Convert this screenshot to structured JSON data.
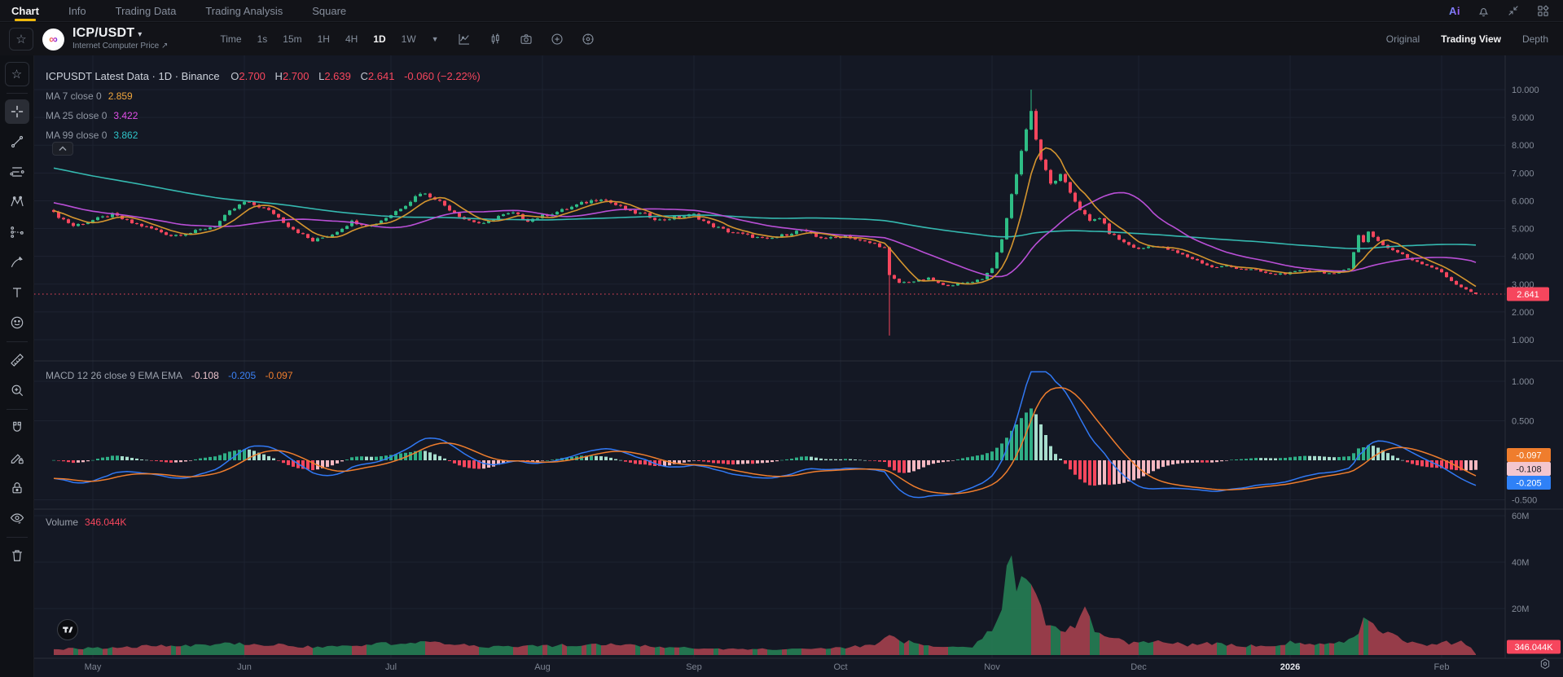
{
  "top_nav": {
    "tabs": [
      {
        "label": "Chart",
        "active": true
      },
      {
        "label": "Info",
        "active": false
      },
      {
        "label": "Trading Data",
        "active": false
      },
      {
        "label": "Trading Analysis",
        "active": false
      },
      {
        "label": "Square",
        "active": false
      }
    ],
    "ai_label": "Ai",
    "accent_color": "#f0b90b"
  },
  "toolbar": {
    "symbol": "ICP/USDT",
    "symbol_description": "Internet Computer Price",
    "coin_glyph": "∞",
    "intervals": [
      "Time",
      "1s",
      "15m",
      "1H",
      "4H",
      "1D",
      "1W"
    ],
    "active_interval": "1D",
    "view_tabs": [
      {
        "label": "Original",
        "active": false
      },
      {
        "label": "Trading View",
        "active": true
      },
      {
        "label": "Depth",
        "active": false
      }
    ]
  },
  "legend": {
    "title": "ICPUSDT Latest Data · 1D · Binance",
    "o_label": "O",
    "o": "2.700",
    "h_label": "H",
    "h": "2.700",
    "l_label": "L",
    "l": "2.639",
    "c_label": "C",
    "c": "2.641",
    "change": "-0.060 (−2.22%)",
    "ma": [
      {
        "label": "MA 7 close 0",
        "value": "2.859",
        "color": "#f0a63c"
      },
      {
        "label": "MA 25 close 0",
        "value": "3.422",
        "color": "#e14fe8"
      },
      {
        "label": "MA 99 close 0",
        "value": "3.862",
        "color": "#2fc4c9"
      }
    ]
  },
  "macd_legend": {
    "title": "MACD 12 26 close 9 EMA EMA",
    "histogram": "-0.108",
    "histogram_color": "#edc4cd",
    "macd": "-0.205",
    "macd_color": "#3b82f6",
    "signal": "-0.097",
    "signal_color": "#ef7d2d"
  },
  "volume_legend": {
    "label": "Volume",
    "value": "346.044K"
  },
  "axis": {
    "price_ticks": [
      {
        "label": "10.000",
        "value": 10
      },
      {
        "label": "9.000",
        "value": 9
      },
      {
        "label": "8.000",
        "value": 8
      },
      {
        "label": "7.000",
        "value": 7
      },
      {
        "label": "6.000",
        "value": 6
      },
      {
        "label": "5.000",
        "value": 5
      },
      {
        "label": "4.000",
        "value": 4
      },
      {
        "label": "3.000",
        "value": 3
      },
      {
        "label": "2.000",
        "value": 2
      },
      {
        "label": "1.000",
        "value": 1
      }
    ],
    "macd_ticks": [
      {
        "label": "1.000",
        "value": 1.0
      },
      {
        "label": "0.500",
        "value": 0.5
      },
      {
        "label": "-0.500",
        "value": -0.5
      }
    ],
    "volume_ticks": [
      {
        "label": "60M",
        "value": 60
      },
      {
        "label": "40M",
        "value": 40
      },
      {
        "label": "20M",
        "value": 20
      }
    ],
    "months": [
      {
        "label": "May",
        "day": 8
      },
      {
        "label": "Jun",
        "day": 39
      },
      {
        "label": "Jul",
        "day": 69
      },
      {
        "label": "Aug",
        "day": 100
      },
      {
        "label": "Sep",
        "day": 131
      },
      {
        "label": "Oct",
        "day": 161
      },
      {
        "label": "Nov",
        "day": 192
      },
      {
        "label": "Dec",
        "day": 222
      },
      {
        "label": "2026",
        "day": 253,
        "highlight": true
      },
      {
        "label": "Feb",
        "day": 284
      }
    ],
    "badges": {
      "price": {
        "label": "2.641",
        "bg": "#f6465d",
        "fg": "#ffffff"
      },
      "signal": {
        "label": "-0.097",
        "bg": "#ef7d2d",
        "fg": "#ffffff"
      },
      "hist": {
        "label": "-0.108",
        "bg": "#f3c6ce",
        "fg": "#1b1d23"
      },
      "macd": {
        "label": "-0.205",
        "bg": "#2f81f7",
        "fg": "#ffffff"
      },
      "volume": {
        "label": "346.044K",
        "bg": "#f6465d",
        "fg": "#ffffff"
      }
    }
  },
  "chart_data": {
    "type": "candlestick",
    "symbol": "ICPUSDT",
    "interval": "1D",
    "exchange": "Binance",
    "panes": [
      "price+MA(7,25,99)",
      "MACD(12,26,9)",
      "volume"
    ],
    "ohlc_last": {
      "open": 2.7,
      "high": 2.7,
      "low": 2.639,
      "close": 2.641,
      "change": -0.06,
      "change_pct": "-2.22%"
    },
    "ma_values": {
      "ma7": 2.859,
      "ma25": 3.422,
      "ma99": 3.862
    },
    "macd_values": {
      "histogram": -0.108,
      "macd": -0.205,
      "signal": -0.097
    },
    "volume_last_label": "346.044K",
    "price_axis_range": [
      0.6,
      10.4
    ],
    "macd_axis_range": [
      -0.55,
      1.15
    ],
    "volume_axis_range_m": [
      0,
      60
    ],
    "days_total": 292,
    "history": {
      "start_price": 8.9,
      "days": 100
    },
    "close_anchors": [
      [
        0,
        5.55
      ],
      [
        4,
        5.1
      ],
      [
        8,
        5.3
      ],
      [
        12,
        5.5
      ],
      [
        16,
        5.2
      ],
      [
        20,
        5.0
      ],
      [
        24,
        4.75
      ],
      [
        28,
        4.85
      ],
      [
        33,
        5.1
      ],
      [
        36,
        5.6
      ],
      [
        39,
        5.95
      ],
      [
        42,
        5.8
      ],
      [
        45,
        5.55
      ],
      [
        48,
        5.1
      ],
      [
        53,
        4.55
      ],
      [
        57,
        4.8
      ],
      [
        61,
        5.25
      ],
      [
        65,
        5.1
      ],
      [
        69,
        5.5
      ],
      [
        73,
        6.0
      ],
      [
        75,
        6.3
      ],
      [
        78,
        6.1
      ],
      [
        81,
        5.7
      ],
      [
        84,
        5.35
      ],
      [
        88,
        5.15
      ],
      [
        91,
        5.45
      ],
      [
        94,
        5.55
      ],
      [
        97,
        5.3
      ],
      [
        100,
        5.45
      ],
      [
        104,
        5.65
      ],
      [
        108,
        5.9
      ],
      [
        112,
        6.1
      ],
      [
        115,
        5.85
      ],
      [
        118,
        5.6
      ],
      [
        121,
        5.5
      ],
      [
        124,
        5.3
      ],
      [
        127,
        5.4
      ],
      [
        131,
        5.5
      ],
      [
        134,
        5.15
      ],
      [
        138,
        4.9
      ],
      [
        142,
        4.75
      ],
      [
        146,
        4.6
      ],
      [
        150,
        4.8
      ],
      [
        153,
        4.95
      ],
      [
        156,
        4.7
      ],
      [
        159,
        4.65
      ],
      [
        162,
        4.75
      ],
      [
        165,
        4.55
      ],
      [
        168,
        4.45
      ],
      [
        170,
        4.3
      ],
      [
        171,
        3.3
      ],
      [
        173,
        3.05
      ],
      [
        176,
        3.1
      ],
      [
        179,
        3.2
      ],
      [
        182,
        2.95
      ],
      [
        185,
        3.0
      ],
      [
        188,
        3.1
      ],
      [
        190,
        3.2
      ],
      [
        192,
        3.6
      ],
      [
        194,
        4.6
      ],
      [
        196,
        6.2
      ],
      [
        198,
        7.8
      ],
      [
        200,
        9.3
      ],
      [
        201,
        8.2
      ],
      [
        202,
        7.5
      ],
      [
        204,
        6.6
      ],
      [
        206,
        6.9
      ],
      [
        208,
        6.3
      ],
      [
        210,
        5.7
      ],
      [
        212,
        5.25
      ],
      [
        214,
        5.4
      ],
      [
        216,
        4.85
      ],
      [
        219,
        4.5
      ],
      [
        222,
        4.25
      ],
      [
        225,
        4.4
      ],
      [
        228,
        4.25
      ],
      [
        231,
        4.05
      ],
      [
        234,
        3.85
      ],
      [
        237,
        3.6
      ],
      [
        240,
        3.65
      ],
      [
        243,
        3.55
      ],
      [
        246,
        3.5
      ],
      [
        249,
        3.35
      ],
      [
        253,
        3.4
      ],
      [
        256,
        3.5
      ],
      [
        259,
        3.45
      ],
      [
        262,
        3.35
      ],
      [
        265,
        3.6
      ],
      [
        267,
        4.75
      ],
      [
        268,
        4.5
      ],
      [
        269,
        4.9
      ],
      [
        271,
        4.55
      ],
      [
        273,
        4.3
      ],
      [
        275,
        4.15
      ],
      [
        277,
        3.95
      ],
      [
        280,
        3.75
      ],
      [
        283,
        3.55
      ],
      [
        285,
        3.25
      ],
      [
        287,
        3.0
      ],
      [
        289,
        2.8
      ],
      [
        291,
        2.641
      ]
    ],
    "events": [
      {
        "day": 171,
        "low": 1.15
      },
      {
        "day": 200,
        "high": 10.0
      }
    ],
    "volume_anchors_m": [
      [
        0,
        3
      ],
      [
        20,
        4.5
      ],
      [
        39,
        6
      ],
      [
        53,
        4
      ],
      [
        75,
        6.5
      ],
      [
        90,
        4
      ],
      [
        112,
        5.5
      ],
      [
        130,
        3.5
      ],
      [
        145,
        3
      ],
      [
        160,
        3.5
      ],
      [
        168,
        5
      ],
      [
        171,
        12
      ],
      [
        174,
        7
      ],
      [
        178,
        5
      ],
      [
        183,
        4
      ],
      [
        188,
        4
      ],
      [
        192,
        14
      ],
      [
        194,
        20
      ],
      [
        196,
        58
      ],
      [
        197,
        30
      ],
      [
        199,
        40
      ],
      [
        201,
        35
      ],
      [
        203,
        18
      ],
      [
        205,
        14
      ],
      [
        207,
        11
      ],
      [
        209,
        16
      ],
      [
        211,
        23
      ],
      [
        213,
        12
      ],
      [
        216,
        9
      ],
      [
        220,
        6
      ],
      [
        226,
        7
      ],
      [
        232,
        5
      ],
      [
        238,
        6
      ],
      [
        244,
        4.5
      ],
      [
        250,
        5
      ],
      [
        254,
        7
      ],
      [
        258,
        5
      ],
      [
        262,
        5.5
      ],
      [
        265,
        8
      ],
      [
        267,
        12
      ],
      [
        268,
        22
      ],
      [
        270,
        16
      ],
      [
        272,
        12
      ],
      [
        276,
        8
      ],
      [
        279,
        6
      ],
      [
        282,
        5
      ],
      [
        284,
        7
      ],
      [
        286,
        6
      ],
      [
        288,
        8
      ],
      [
        290,
        4
      ],
      [
        291,
        0.35
      ]
    ],
    "colors": {
      "up": "#2ebd85",
      "down": "#f6465d",
      "ma7": "#d4952f",
      "ma25": "#b94fd6",
      "ma99": "#35b9b0",
      "macd_line": "#3179f5",
      "signal_line": "#ef7d2d",
      "hist_up_strong": "#2fae86",
      "hist_up_weak": "#a8ddcd",
      "hist_down_strong": "#f6465d",
      "hist_down_weak": "#f4b8c1",
      "vol_up": "#257d54",
      "vol_down": "#a2404d",
      "grid": "#1d2230",
      "separator": "#2a2e39",
      "axis_text": "#848b98",
      "month_text": "#7d8492",
      "month_highlight": "#e8eaee",
      "background": "#141824"
    }
  }
}
